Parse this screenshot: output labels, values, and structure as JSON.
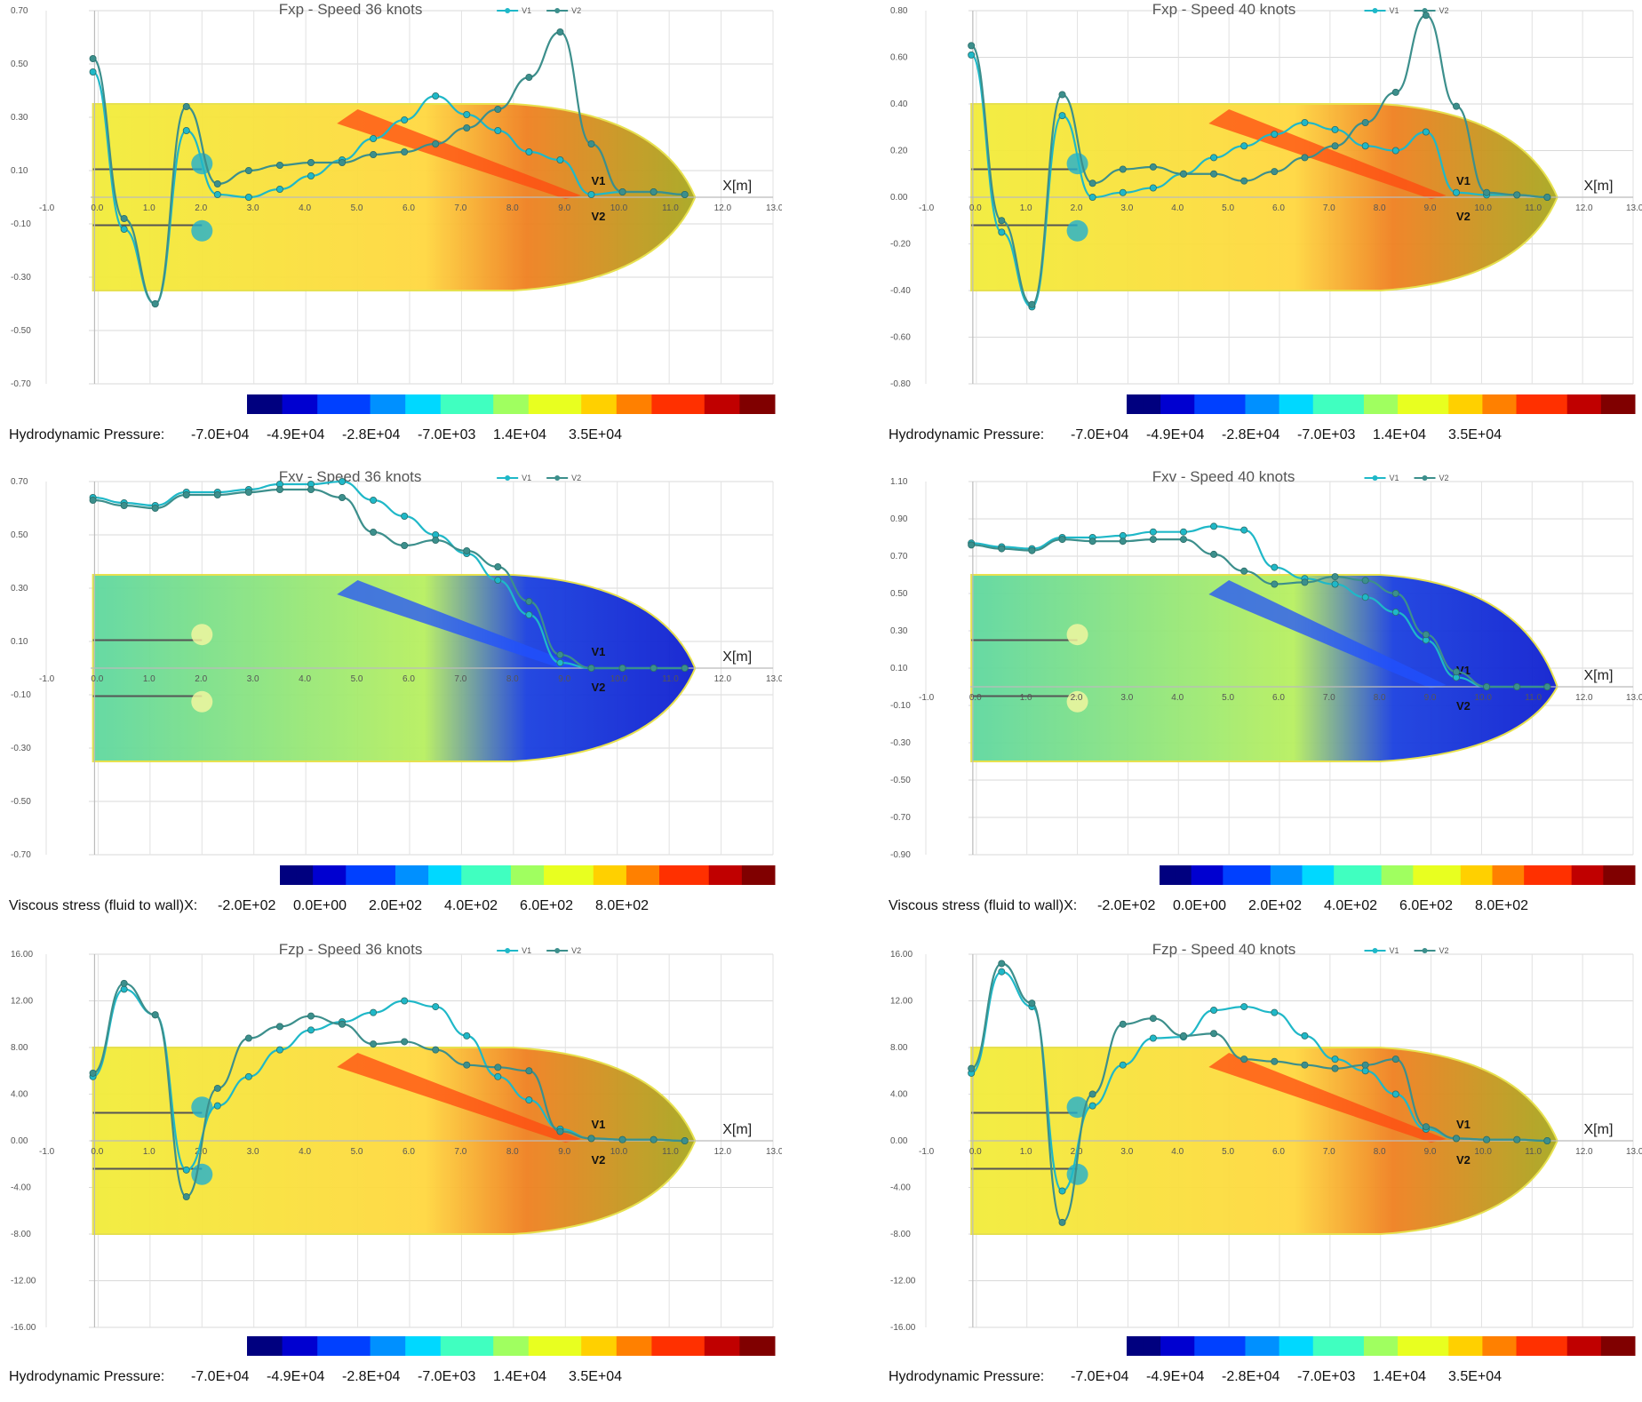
{
  "colors": {
    "v1": "#1fb8c8",
    "v2": "#3c8f8c",
    "colorbar": [
      "#00007f",
      "#0000d0",
      "#0040ff",
      "#0090ff",
      "#00d8ff",
      "#40ffc0",
      "#a0ff60",
      "#e8ff20",
      "#ffd000",
      "#ff8000",
      "#ff3000",
      "#c00000",
      "#800000"
    ]
  },
  "chart_data": [
    {
      "id": "fxp36",
      "type": "line",
      "title": "Fxp - Speed 36 knots",
      "x_label": "X[m]",
      "x_ticks": [
        "-1.0",
        "0.0",
        "1.0",
        "2.0",
        "3.0",
        "4.0",
        "5.0",
        "6.0",
        "7.0",
        "8.0",
        "9.0",
        "10.0",
        "11.0",
        "12.0",
        "13.0"
      ],
      "y_ticks": [
        "0.70",
        "0.50",
        "0.30",
        "0.10",
        "-0.10",
        "-0.30",
        "-0.50",
        "-0.70"
      ],
      "ylim": [
        -0.7,
        0.7
      ],
      "xlim": [
        -1.0,
        13.0
      ],
      "legend": [
        "V1",
        "V2"
      ],
      "hull_labels": [
        "V1",
        "V2"
      ],
      "colorbar": {
        "label": "Hydrodynamic Pressure:",
        "ticks": [
          "-7.0E+04",
          "-4.9E+04",
          "-2.8E+04",
          "-7.0E+03",
          "1.4E+04",
          "3.5E+04"
        ]
      },
      "series": [
        {
          "name": "V1",
          "x": [
            -0.1,
            0.5,
            1.1,
            1.7,
            2.3,
            2.9,
            3.5,
            4.1,
            4.7,
            5.3,
            5.9,
            6.5,
            7.1,
            7.7,
            8.3,
            8.9,
            9.5,
            10.1,
            10.7,
            11.3
          ],
          "y": [
            0.47,
            -0.12,
            -0.4,
            0.25,
            0.01,
            0.0,
            0.03,
            0.08,
            0.14,
            0.22,
            0.29,
            0.38,
            0.31,
            0.25,
            0.17,
            0.14,
            0.01,
            0.02,
            0.02,
            0.01
          ]
        },
        {
          "name": "V2",
          "x": [
            -0.1,
            0.5,
            1.1,
            1.7,
            2.3,
            2.9,
            3.5,
            4.1,
            4.7,
            5.3,
            5.9,
            6.5,
            7.1,
            7.7,
            8.3,
            8.9,
            9.5,
            10.1,
            10.7,
            11.3
          ],
          "y": [
            0.52,
            -0.08,
            -0.4,
            0.34,
            0.05,
            0.1,
            0.12,
            0.13,
            0.13,
            0.16,
            0.17,
            0.2,
            0.26,
            0.33,
            0.45,
            0.62,
            0.2,
            0.02,
            0.02,
            0.01
          ]
        }
      ]
    },
    {
      "id": "fxp40",
      "type": "line",
      "title": "Fxp - Speed 40 knots",
      "x_label": "X[m]",
      "x_ticks": [
        "-1.0",
        "0.0",
        "1.0",
        "2.0",
        "3.0",
        "4.0",
        "5.0",
        "6.0",
        "7.0",
        "8.0",
        "9.0",
        "10.0",
        "11.0",
        "12.0",
        "13.0"
      ],
      "y_ticks": [
        "0.80",
        "0.60",
        "0.40",
        "0.20",
        "0.00",
        "-0.20",
        "-0.40",
        "-0.60",
        "-0.80"
      ],
      "ylim": [
        -0.8,
        0.8
      ],
      "xlim": [
        -1.0,
        13.0
      ],
      "legend": [
        "V1",
        "V2"
      ],
      "hull_labels": [
        "V1",
        "V2"
      ],
      "colorbar": {
        "label": "Hydrodynamic Pressure:",
        "ticks": [
          "-7.0E+04",
          "-4.9E+04",
          "-2.8E+04",
          "-7.0E+03",
          "1.4E+04",
          "3.5E+04"
        ]
      },
      "series": [
        {
          "name": "V1",
          "x": [
            -0.1,
            0.5,
            1.1,
            1.7,
            2.3,
            2.9,
            3.5,
            4.1,
            4.7,
            5.3,
            5.9,
            6.5,
            7.1,
            7.7,
            8.3,
            8.9,
            9.5,
            10.1,
            10.7,
            11.3
          ],
          "y": [
            0.61,
            -0.15,
            -0.47,
            0.35,
            0.0,
            0.02,
            0.04,
            0.1,
            0.17,
            0.22,
            0.27,
            0.32,
            0.29,
            0.22,
            0.2,
            0.28,
            0.02,
            0.01,
            0.01,
            0.0
          ]
        },
        {
          "name": "V2",
          "x": [
            -0.1,
            0.5,
            1.1,
            1.7,
            2.3,
            2.9,
            3.5,
            4.1,
            4.7,
            5.3,
            5.9,
            6.5,
            7.1,
            7.7,
            8.3,
            8.9,
            9.5,
            10.1,
            10.7,
            11.3
          ],
          "y": [
            0.65,
            -0.1,
            -0.46,
            0.44,
            0.06,
            0.12,
            0.13,
            0.1,
            0.1,
            0.07,
            0.11,
            0.17,
            0.22,
            0.32,
            0.45,
            0.78,
            0.39,
            0.02,
            0.01,
            0.0
          ]
        }
      ]
    },
    {
      "id": "fxv36",
      "type": "line",
      "title": "Fxv - Speed 36 knots",
      "x_label": "X[m]",
      "x_ticks": [
        "-1.0",
        "0.0",
        "1.0",
        "2.0",
        "3.0",
        "4.0",
        "5.0",
        "6.0",
        "7.0",
        "8.0",
        "9.0",
        "10.0",
        "11.0",
        "12.0",
        "13.0"
      ],
      "y_ticks": [
        "0.70",
        "0.50",
        "0.30",
        "0.10",
        "-0.10",
        "-0.30",
        "-0.50",
        "-0.70"
      ],
      "ylim": [
        -0.7,
        0.7
      ],
      "xlim": [
        -1.0,
        13.0
      ],
      "legend": [
        "V1",
        "V2"
      ],
      "hull_labels": [
        "V1",
        "V2"
      ],
      "colorbar": {
        "label": "Viscous stress (fluid to wall)X:",
        "ticks": [
          "-2.0E+02",
          "0.0E+00",
          "2.0E+02",
          "4.0E+02",
          "6.0E+02",
          "8.0E+02"
        ]
      },
      "series": [
        {
          "name": "V1",
          "x": [
            -0.1,
            0.5,
            1.1,
            1.7,
            2.3,
            2.9,
            3.5,
            4.1,
            4.7,
            5.3,
            5.9,
            6.5,
            7.1,
            7.7,
            8.3,
            8.9,
            9.5,
            10.1,
            10.7,
            11.3
          ],
          "y": [
            0.64,
            0.62,
            0.61,
            0.66,
            0.66,
            0.67,
            0.69,
            0.69,
            0.7,
            0.63,
            0.57,
            0.5,
            0.43,
            0.33,
            0.2,
            0.02,
            0.0,
            0.0,
            0.0,
            0.0
          ]
        },
        {
          "name": "V2",
          "x": [
            -0.1,
            0.5,
            1.1,
            1.7,
            2.3,
            2.9,
            3.5,
            4.1,
            4.7,
            5.3,
            5.9,
            6.5,
            7.1,
            7.7,
            8.3,
            8.9,
            9.5,
            10.1,
            10.7,
            11.3
          ],
          "y": [
            0.63,
            0.61,
            0.6,
            0.65,
            0.65,
            0.66,
            0.67,
            0.67,
            0.64,
            0.51,
            0.46,
            0.48,
            0.44,
            0.38,
            0.25,
            0.05,
            0.0,
            0.0,
            0.0,
            0.0
          ]
        }
      ]
    },
    {
      "id": "fxv40",
      "type": "line",
      "title": "Fxv - Speed 40 knots",
      "x_label": "X[m]",
      "x_ticks": [
        "-1.0",
        "0.0",
        "1.0",
        "2.0",
        "3.0",
        "4.0",
        "5.0",
        "6.0",
        "7.0",
        "8.0",
        "9.0",
        "10.0",
        "11.0",
        "12.0",
        "13.0"
      ],
      "y_ticks": [
        "1.10",
        "0.90",
        "0.70",
        "0.50",
        "0.30",
        "0.10",
        "-0.10",
        "-0.30",
        "-0.50",
        "-0.70",
        "-0.90"
      ],
      "ylim": [
        -0.9,
        1.1
      ],
      "xlim": [
        -1.0,
        13.0
      ],
      "legend": [
        "V1",
        "V2"
      ],
      "hull_labels": [
        "V1",
        "V2"
      ],
      "colorbar": {
        "label": "Viscous stress (fluid to wall)X:",
        "ticks": [
          "-2.0E+02",
          "0.0E+00",
          "2.0E+02",
          "4.0E+02",
          "6.0E+02",
          "8.0E+02"
        ]
      },
      "series": [
        {
          "name": "V1",
          "x": [
            -0.1,
            0.5,
            1.1,
            1.7,
            2.3,
            2.9,
            3.5,
            4.1,
            4.7,
            5.3,
            5.9,
            6.5,
            7.1,
            7.7,
            8.3,
            8.9,
            9.5,
            10.1,
            10.7,
            11.3
          ],
          "y": [
            0.77,
            0.75,
            0.74,
            0.8,
            0.8,
            0.81,
            0.83,
            0.83,
            0.86,
            0.84,
            0.64,
            0.58,
            0.55,
            0.48,
            0.4,
            0.25,
            0.05,
            0.0,
            0.0,
            0.0
          ]
        },
        {
          "name": "V2",
          "x": [
            -0.1,
            0.5,
            1.1,
            1.7,
            2.3,
            2.9,
            3.5,
            4.1,
            4.7,
            5.3,
            5.9,
            6.5,
            7.1,
            7.7,
            8.3,
            8.9,
            9.5,
            10.1,
            10.7,
            11.3
          ],
          "y": [
            0.76,
            0.74,
            0.73,
            0.79,
            0.78,
            0.78,
            0.79,
            0.79,
            0.71,
            0.62,
            0.55,
            0.56,
            0.59,
            0.57,
            0.5,
            0.28,
            0.08,
            0.0,
            0.0,
            0.0
          ]
        }
      ]
    },
    {
      "id": "fzp36",
      "type": "line",
      "title": "Fzp - Speed 36 knots",
      "x_label": "X[m]",
      "x_ticks": [
        "-1.0",
        "0.0",
        "1.0",
        "2.0",
        "3.0",
        "4.0",
        "5.0",
        "6.0",
        "7.0",
        "8.0",
        "9.0",
        "10.0",
        "11.0",
        "12.0",
        "13.0"
      ],
      "y_ticks": [
        "16.00",
        "12.00",
        "8.00",
        "4.00",
        "0.00",
        "-4.00",
        "-8.00",
        "-12.00",
        "-16.00"
      ],
      "ylim": [
        -16.0,
        16.0
      ],
      "xlim": [
        -1.0,
        13.0
      ],
      "legend": [
        "V1",
        "V2"
      ],
      "hull_labels": [
        "V1",
        "V2"
      ],
      "colorbar": {
        "label": "Hydrodynamic Pressure:",
        "ticks": [
          "-7.0E+04",
          "-4.9E+04",
          "-2.8E+04",
          "-7.0E+03",
          "1.4E+04",
          "3.5E+04"
        ]
      },
      "series": [
        {
          "name": "V1",
          "x": [
            -0.1,
            0.5,
            1.1,
            1.7,
            2.3,
            2.9,
            3.5,
            4.1,
            4.7,
            5.3,
            5.9,
            6.5,
            7.1,
            7.7,
            8.3,
            8.9,
            9.5,
            10.1,
            10.7,
            11.3
          ],
          "y": [
            5.5,
            13.0,
            10.8,
            -2.5,
            3.0,
            5.5,
            7.8,
            9.5,
            10.2,
            11.0,
            12.0,
            11.5,
            9.0,
            5.5,
            3.5,
            1.0,
            0.2,
            0.1,
            0.1,
            0.0
          ]
        },
        {
          "name": "V2",
          "x": [
            -0.1,
            0.5,
            1.1,
            1.7,
            2.3,
            2.9,
            3.5,
            4.1,
            4.7,
            5.3,
            5.9,
            6.5,
            7.1,
            7.7,
            8.3,
            8.9,
            9.5,
            10.1,
            10.7,
            11.3
          ],
          "y": [
            5.8,
            13.5,
            10.8,
            -4.8,
            4.5,
            8.8,
            9.8,
            10.7,
            10.0,
            8.3,
            8.5,
            7.8,
            6.5,
            6.3,
            6.0,
            0.8,
            0.2,
            0.1,
            0.1,
            0.0
          ]
        }
      ]
    },
    {
      "id": "fzp40",
      "type": "line",
      "title": "Fzp - Speed 40 knots",
      "x_label": "X[m]",
      "x_ticks": [
        "-1.0",
        "0.0",
        "1.0",
        "2.0",
        "3.0",
        "4.0",
        "5.0",
        "6.0",
        "7.0",
        "8.0",
        "9.0",
        "10.0",
        "11.0",
        "12.0",
        "13.0"
      ],
      "y_ticks": [
        "16.00",
        "12.00",
        "8.00",
        "4.00",
        "0.00",
        "-4.00",
        "-8.00",
        "-12.00",
        "-16.00"
      ],
      "ylim": [
        -16.0,
        16.0
      ],
      "xlim": [
        -1.0,
        13.0
      ],
      "legend": [
        "V1",
        "V2"
      ],
      "hull_labels": [
        "V1",
        "V2"
      ],
      "colorbar": {
        "label": "Hydrodynamic Pressure:",
        "ticks": [
          "-7.0E+04",
          "-4.9E+04",
          "-2.8E+04",
          "-7.0E+03",
          "1.4E+04",
          "3.5E+04"
        ]
      },
      "series": [
        {
          "name": "V1",
          "x": [
            -0.1,
            0.5,
            1.1,
            1.7,
            2.3,
            2.9,
            3.5,
            4.1,
            4.7,
            5.3,
            5.9,
            6.5,
            7.1,
            7.7,
            8.3,
            8.9,
            9.5,
            10.1,
            10.7,
            11.3
          ],
          "y": [
            5.8,
            14.5,
            11.5,
            -4.3,
            3.0,
            6.5,
            8.8,
            8.9,
            11.2,
            11.5,
            11.0,
            9.0,
            7.0,
            6.0,
            4.0,
            1.0,
            0.2,
            0.1,
            0.1,
            0.0
          ]
        },
        {
          "name": "V2",
          "x": [
            -0.1,
            0.5,
            1.1,
            1.7,
            2.3,
            2.9,
            3.5,
            4.1,
            4.7,
            5.3,
            5.9,
            6.5,
            7.1,
            7.7,
            8.3,
            8.9,
            9.5,
            10.1,
            10.7,
            11.3
          ],
          "y": [
            6.2,
            15.2,
            11.8,
            -7.0,
            4.0,
            10.0,
            10.5,
            9.0,
            9.2,
            7.0,
            6.8,
            6.5,
            6.2,
            6.5,
            7.0,
            1.2,
            0.2,
            0.1,
            0.1,
            0.0
          ]
        }
      ]
    }
  ]
}
